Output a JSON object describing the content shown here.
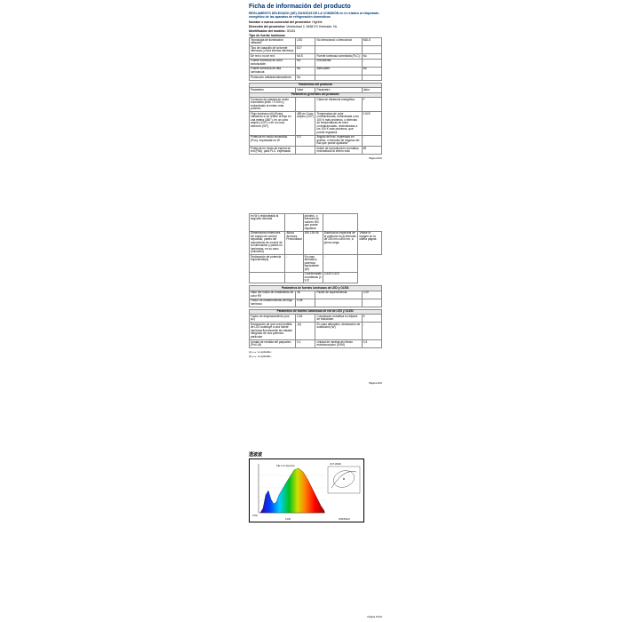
{
  "title": "Ficha de información del producto",
  "regulation": "REGLAMENTO DELEGADO (UE) 2019/2015 DE LA COMISIÓN en lo relativo al etiquetado energético de las aparatos de refrigeración domésticos",
  "supplier_label": "Nombre o marca comercial del proveedor:",
  "supplier_value": "Highlite",
  "address_label": "Dirección del proveedor:",
  "address_value": "Vestastraat 2, 6468 EX Kerkrade, NL",
  "model_label": "Identificador del modelo:",
  "model_value": "30181",
  "type_label": "Tipo de fuente luminosa:",
  "table1": {
    "rows": [
      [
        "Tecnología de iluminación utilizada:",
        "LED",
        "No direccional o direccional:",
        "NDLS"
      ],
      [
        "Tipo de casquillo de la fuente luminosa (u otra interfaz eléctrica):",
        "E27",
        "",
        ""
      ],
      [
        "De red o no de red:",
        "MLS",
        "Fuente luminosa conectada (FLC):",
        "No"
      ],
      [
        "Fuente luminosa de color sintonizable:",
        "No",
        "Envolvente:",
        "-"
      ],
      [
        "Fuente luminosa de alta luminancia:",
        "No",
        "Atenuable:",
        "No"
      ],
      [
        "Protección antideslumbramiento:",
        "No",
        "",
        ""
      ]
    ]
  },
  "params_header": "Parámetros del producto",
  "param_col1": "Parámetro",
  "param_col2": "Valor",
  "general_header": "Parámetros generales del producto:",
  "table2": {
    "rows": [
      [
        "Consumo de energía en modo encendido (kWh / 1 000 h), redondeado al entero más próximo",
        "-",
        "Clase de eficiencia energética",
        "F"
      ],
      [
        "Flujo luminoso útil (Φuse), indicando si se refiere al flujo en una esfera (360°), en un cono amplio (120°) o en un cono estrecho (90°)",
        "485 en Cono amplio (120°)",
        "Temperatura de color correlacionada, redondeada a los 100 K más próximos, o intervalo de temperaturas de color correlacionadas, redondeadas a los 100 K más próximos, que puede regularse",
        "2 620"
      ],
      [
        "Potencia en modo encendido (Pon), expresada en W",
        "9,0",
        "Ángulo del haz, expresado en grados, o intervalo de ángulos del haz que puede ajustarse",
        "-"
      ],
      [
        "Potencia en modo de espera en red (Psb), para FLC, expresada",
        "-",
        "Índice de reproducción cromática, redondeado al entero más",
        "65"
      ]
    ]
  },
  "page1": "Página 8/10",
  "cont_top": "en W y redondeada al segundo decimal",
  "cont_top2": "próximo, o intervalo de valores IRC que puede regularse",
  "table3": {
    "rows": [
      [
        "Dimensiones exteriores sin equipo de control separado, partes del mecanismo de control de la iluminación y partes no luminosas, en su caso (milímetro)",
        "Altura\nAnchura\nProfundidad",
        "190\n135\n95",
        "Distribución espectral de la potencia en el intervalo de 250 nm a 800 nm, a plena carga",
        "Véase la imagen en la última página"
      ],
      [
        "Declaración de potencia equivalente(a)",
        "-",
        "En caso afirmativo, potencia equivalente (W)",
        "-"
      ],
      [
        "",
        "",
        "Coordenadas cromáticas (x y y)",
        "0,440\n0,415"
      ]
    ]
  },
  "led_oled_header": "Parámetros de fuentes luminosas de LED y OLED:",
  "table4": {
    "rows": [
      [
        "Valor del índice de rendimiento de color R9",
        "38",
        "Factor de supervivencia",
        "1,00"
      ],
      [
        "Factor de mantenimiento del flujo luminoso",
        "0,98",
        "",
        ""
      ]
    ]
  },
  "led_oled_net_header": "Parámetros de fuentes luminosas de red de LED y OLED:",
  "table5": {
    "rows": [
      [
        "Factor de desplazamiento (cos φ1)",
        "0,54",
        "Constancia cromática en elipses de MacAdam",
        "5"
      ],
      [
        "Declaración de que una bombilla de LED sustituye a una fuente luminosa fluorescente sin balasto integrado de una potencia particular.",
        "-(b)",
        "En caso afirmativo, declaración de sustitución (W)",
        "-"
      ],
      [
        "Unidad de medida del parpadeo (Pst LM)",
        "0,1",
        "Unidad de medida del efecto estroboscópico (SVM)",
        "0,3"
      ]
    ]
  },
  "footnote_a": "(a) «-»: no aplicable;",
  "footnote_b": "(b) «-»: no aplicable;",
  "page2": "Página 9/10",
  "spectrum_title": "透波波",
  "spectrum_left": "0,011",
  "spectrum_bottom": "0,010",
  "spectrum_rb": "SVM/PstLM",
  "page3": "Página 10/10"
}
